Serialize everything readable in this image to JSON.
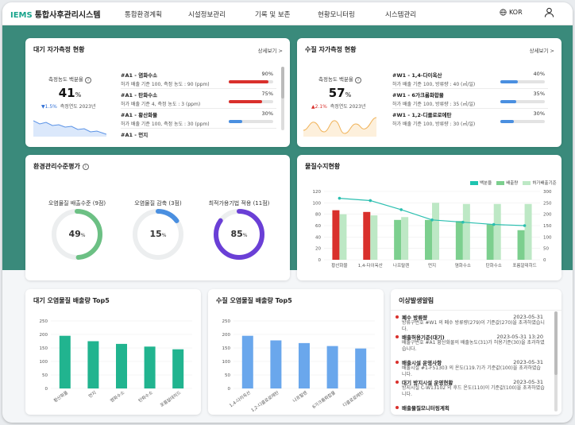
{
  "header": {
    "brand": "IEMS",
    "app_name": "통합사후관리시스템",
    "nav": [
      "통합환경계획",
      "시설정보관리",
      "기록 및 보존",
      "현황모니터링",
      "시스템관리"
    ],
    "lang": "KOR",
    "globe_icon": "globe-icon",
    "user_icon": "user-icon"
  },
  "air": {
    "title": "대기 자가측정 현황",
    "more": "상세보기 >",
    "label": "측정농도 백분율",
    "value": "41",
    "unit": "%",
    "trend": "▼1.5%",
    "trend_text": "측정연도 2023년",
    "items": [
      {
        "name": "#A1 - 염화수소",
        "desc": "허가 배출 기준 100, 측정 농도 : 90 (ppm)",
        "pct": "90%",
        "level": 90,
        "color": "#d9302c"
      },
      {
        "name": "#A1 - 탄화수소",
        "desc": "허가 배출 기준 4, 측정 농도 : 3 (ppm)",
        "pct": "75%",
        "level": 75,
        "color": "#d9302c"
      },
      {
        "name": "#A1 - 황산화물",
        "desc": "허가 배출 기준 100, 측정 농도 : 30 (ppm)",
        "pct": "30%",
        "level": 30,
        "color": "#4a8fe0"
      },
      {
        "name": "#A1 - 먼지",
        "desc": "",
        "pct": "",
        "level": 0,
        "color": "#4a8fe0"
      }
    ]
  },
  "water": {
    "title": "수질 자가측정 현황",
    "more": "상세보기 >",
    "label": "측정농도 백분율",
    "value": "57",
    "unit": "%",
    "trend": "▲2.1%",
    "trend_text": "측정연도 2023년",
    "items": [
      {
        "name": "#W1 - 1,4-다이옥산",
        "desc": "허가 배출 기준 100, 방류량 : 40 (㎥/일)",
        "pct": "40%",
        "level": 40,
        "color": "#4a8fe0"
      },
      {
        "name": "#W1 - 6가크롬화합물",
        "desc": "허가 배출 기준 100, 방류량 : 35 (㎥/일)",
        "pct": "35%",
        "level": 35,
        "color": "#4a8fe0"
      },
      {
        "name": "#W1 - 1,2-디클로로에탄",
        "desc": "허가 배출 기준 100, 방류량 : 30 (㎥/일)",
        "pct": "30%",
        "level": 30,
        "color": "#4a8fe0"
      }
    ]
  },
  "env": {
    "title": "환경관리수준평가",
    "gauges": [
      {
        "label": "오염물질 배출수준 (9점)",
        "value": "49",
        "unit": "%",
        "level": 49,
        "color": "#6cc084"
      },
      {
        "label": "오염물질 감축 (3점)",
        "value": "15",
        "unit": "%",
        "level": 15,
        "color": "#4a8fe0"
      },
      {
        "label": "최적가용기법 적용 (11점)",
        "value": "85",
        "unit": "%",
        "level": 85,
        "color": "#6a3fd6"
      }
    ]
  },
  "balance": {
    "title": "물질수지현황",
    "legend": [
      "백분율",
      "배출량",
      "허가배출기준"
    ],
    "colors": {
      "pct": "#1ec4b0",
      "emit_red": "#d9302c",
      "emit_green": "#7ccf8e",
      "permit": "#bde8c5",
      "line": "#2bbfb0"
    },
    "chart_data": {
      "type": "bar",
      "categories": [
        "황산화물",
        "1,4-다이옥산",
        "나프탈렌",
        "먼지",
        "염화수소",
        "탄화수소",
        "포름알데히드"
      ],
      "series": [
        {
          "name": "배출량",
          "values": [
            87,
            84,
            70,
            70,
            68,
            62,
            52
          ]
        },
        {
          "name": "허가배출기준",
          "values": [
            80,
            78,
            75,
            100,
            98,
            98,
            98
          ]
        },
        {
          "name": "백분율",
          "values": [
            270,
            260,
            220,
            175,
            165,
            155,
            150
          ]
        }
      ],
      "ylim": [
        0,
        120
      ],
      "y2lim": [
        0,
        300
      ],
      "yticks": [
        "0",
        "20",
        "40",
        "60",
        "80",
        "100",
        "120"
      ],
      "y2ticks": [
        "0",
        "50",
        "100",
        "150",
        "200",
        "250",
        "300"
      ]
    }
  },
  "airtop": {
    "title": "대기 오염물질 배출량 Top5",
    "chart_data": {
      "type": "bar",
      "categories": [
        "황산화물",
        "먼지",
        "염화수소",
        "탄화수소",
        "포름알데히드"
      ],
      "values": [
        195,
        175,
        165,
        155,
        145
      ],
      "ylim": [
        0,
        250
      ],
      "yticks": [
        "0",
        "50",
        "100",
        "150",
        "200",
        "250"
      ]
    },
    "color": "#21b48f"
  },
  "watertop": {
    "title": "수질 오염물질 배출량 Top5",
    "chart_data": {
      "type": "bar",
      "categories": [
        "1,4-다이옥산",
        "1,2-디클로로에탄",
        "나프탈렌",
        "6가크롬화합물",
        "디클로로에탄"
      ],
      "values": [
        195,
        178,
        168,
        157,
        148
      ],
      "ylim": [
        0,
        250
      ],
      "yticks": [
        "0",
        "50",
        "100",
        "150",
        "200",
        "250"
      ]
    },
    "color": "#6aa7ec"
  },
  "alerts": {
    "title": "이상발생알림",
    "items": [
      {
        "title": "폐수 방류량",
        "date": "2023-05-31",
        "body": "방류구번호 #W1 의 폐수 방류량(279)이 기준값(270)을 초과하였습니다."
      },
      {
        "title": "배출허용기준(대기)",
        "date": "2023-05-31 13:20",
        "body": "배출구번호 #A1 황산화물의 배출농도(31)가 허용기준(30)을 초과하였습니다."
      },
      {
        "title": "배출시설 운영사항",
        "date": "2023-05-31",
        "body": "배출시설 #1-F51303 의 온도(119.7)가 기준값(100)을 초과하였습니다."
      },
      {
        "title": "대기 방지시설 운영현황",
        "date": "2023-05-31",
        "body": "방지시설 C-W13102 의 후드 온도(110)이 기준값(100)을 초과하였습니다."
      },
      {
        "title": "배출물질모니터링계획",
        "date": "",
        "body": ""
      }
    ]
  }
}
